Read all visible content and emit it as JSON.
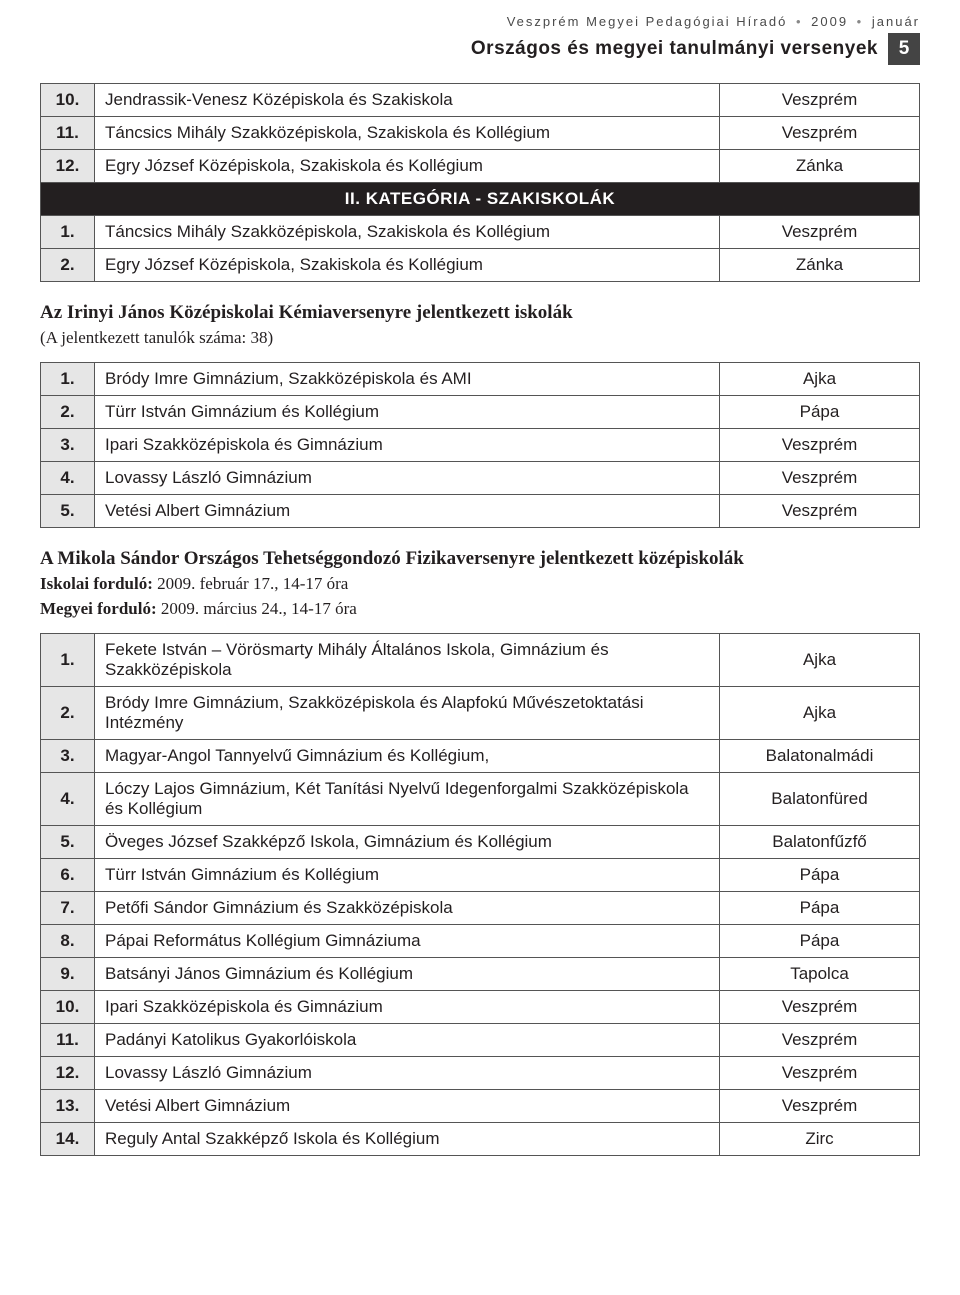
{
  "header": {
    "journal": "Veszprém Megyei Pedagógiai Híradó",
    "year": "2009",
    "month": "január",
    "section_title": "Országos és megyei tanulmányi versenyek",
    "page_number": "5"
  },
  "table1": {
    "rows_a": [
      {
        "n": "10.",
        "name": "Jendrassik-Venesz Középiskola és Szakiskola",
        "city": "Veszprém"
      },
      {
        "n": "11.",
        "name": "Táncsics Mihály Szakközépiskola, Szakiskola és Kollégium",
        "city": "Veszprém"
      },
      {
        "n": "12.",
        "name": "Egry József Középiskola, Szakiskola és Kollégium",
        "city": "Zánka"
      }
    ],
    "cat_header": "II. KATEGÓRIA - SZAKISKOLÁK",
    "rows_b": [
      {
        "n": "1.",
        "name": "Táncsics Mihály Szakközépiskola, Szakiskola és Kollégium",
        "city": "Veszprém"
      },
      {
        "n": "2.",
        "name": "Egry József Középiskola, Szakiskola és Kollégium",
        "city": "Zánka"
      }
    ]
  },
  "section2": {
    "title": "Az Irinyi János Középiskolai Kémiaversenyre jelentkezett iskolák",
    "subtitle": "(A jelentkezett tanulók száma: 38)",
    "rows": [
      {
        "n": "1.",
        "name": "Bródy Imre Gimnázium, Szakközépiskola és AMI",
        "city": "Ajka"
      },
      {
        "n": "2.",
        "name": "Türr István Gimnázium és Kollégium",
        "city": "Pápa"
      },
      {
        "n": "3.",
        "name": "Ipari Szakközépiskola és Gimnázium",
        "city": "Veszprém"
      },
      {
        "n": "4.",
        "name": "Lovassy László Gimnázium",
        "city": "Veszprém"
      },
      {
        "n": "5.",
        "name": "Vetési Albert Gimnázium",
        "city": "Veszprém"
      }
    ]
  },
  "section3": {
    "title": "A Mikola Sándor Országos Tehetséggondozó Fizikaversenyre jelentkezett középiskolák",
    "line1_label": "Iskolai forduló:",
    "line1_rest": " 2009. február 17., 14-17 óra",
    "line2_label": "Megyei forduló:",
    "line2_rest": " 2009. március 24., 14-17 óra",
    "rows": [
      {
        "n": "1.",
        "name": "Fekete István – Vörösmarty Mihály Általános Iskola, Gimnázium és Szakközépiskola",
        "city": "Ajka"
      },
      {
        "n": "2.",
        "name": "Bródy Imre Gimnázium, Szakközépiskola és Alapfokú Művészetoktatási Intézmény",
        "city": "Ajka"
      },
      {
        "n": "3.",
        "name": "Magyar-Angol Tannyelvű Gimnázium és Kollégium,",
        "city": "Balatonalmádi"
      },
      {
        "n": "4.",
        "name": "Lóczy Lajos Gimnázium, Két Tanítási Nyelvű Idegenforgalmi Szakközépiskola és Kollégium",
        "city": "Balatonfüred"
      },
      {
        "n": "5.",
        "name": "Öveges József Szakképző Iskola, Gimnázium és Kollégium",
        "city": "Balatonfűzfő"
      },
      {
        "n": "6.",
        "name": "Türr István Gimnázium és Kollégium",
        "city": "Pápa"
      },
      {
        "n": "7.",
        "name": "Petőfi Sándor Gimnázium és Szakközépiskola",
        "city": "Pápa"
      },
      {
        "n": "8.",
        "name": "Pápai Református Kollégium Gimnáziuma",
        "city": "Pápa"
      },
      {
        "n": "9.",
        "name": "Batsányi János Gimnázium és Kollégium",
        "city": "Tapolca"
      },
      {
        "n": "10.",
        "name": "Ipari Szakközépiskola és Gimnázium",
        "city": "Veszprém"
      },
      {
        "n": "11.",
        "name": "Padányi Katolikus Gyakorlóiskola",
        "city": "Veszprém"
      },
      {
        "n": "12.",
        "name": "Lovassy László Gimnázium",
        "city": "Veszprém"
      },
      {
        "n": "13.",
        "name": "Vetési Albert Gimnázium",
        "city": "Veszprém"
      },
      {
        "n": "14.",
        "name": "Reguly Antal Szakképző Iskola és Kollégium",
        "city": "Zirc"
      }
    ]
  },
  "style": {
    "num_bg": "#e6e6e6",
    "header_row_bg": "#231f20",
    "border_color": "#555555",
    "text_color": "#231f20"
  }
}
